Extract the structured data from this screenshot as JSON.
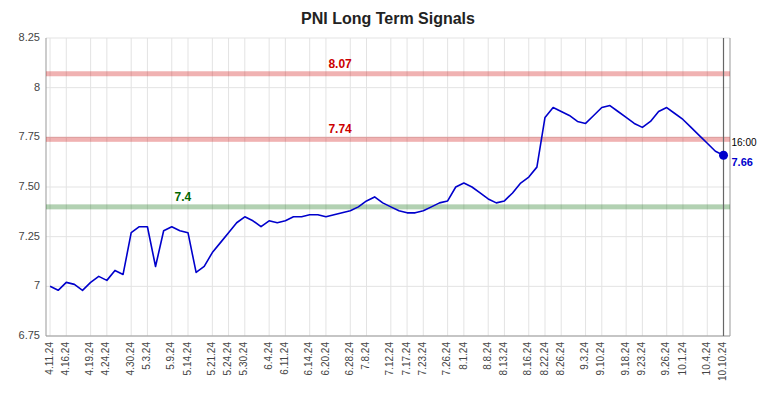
{
  "chart_data": {
    "type": "line",
    "title": "PNI Long Term Signals",
    "categories": [
      "4.11.24",
      null,
      "4.16.24",
      null,
      null,
      "4.19.24",
      null,
      "4.24.24",
      null,
      null,
      "4.30.24",
      null,
      "5.3.24",
      null,
      null,
      "5.9.24",
      null,
      "5.14.24",
      null,
      null,
      "5.21.24",
      null,
      "5.24.24",
      null,
      "5.30.24",
      null,
      null,
      "6.4.24",
      null,
      "6.11.24",
      null,
      null,
      "6.14.24",
      null,
      "6.20.24",
      null,
      null,
      "6.28.24",
      null,
      "7.8.24",
      null,
      null,
      "7.12.24",
      null,
      "7.17.24",
      null,
      "7.23.24",
      null,
      null,
      "7.26.24",
      null,
      "8.1.24",
      null,
      null,
      "8.8.24",
      null,
      "8.13.24",
      null,
      null,
      "8.16.24",
      null,
      "8.22.24",
      null,
      "8.26.24",
      null,
      null,
      "9.3.24",
      null,
      "9.10.24",
      null,
      null,
      "9.18.24",
      null,
      "9.23.24",
      null,
      null,
      "9.26.24",
      null,
      "10.1.24",
      null,
      null,
      "10.4.24",
      null,
      "10.10.24"
    ],
    "values": [
      7.0,
      6.98,
      7.02,
      7.01,
      6.98,
      7.02,
      7.05,
      7.03,
      7.08,
      7.06,
      7.27,
      7.3,
      7.3,
      7.1,
      7.28,
      7.3,
      7.28,
      7.27,
      7.07,
      7.1,
      7.17,
      7.22,
      7.27,
      7.32,
      7.35,
      7.33,
      7.3,
      7.33,
      7.32,
      7.33,
      7.35,
      7.35,
      7.36,
      7.36,
      7.35,
      7.36,
      7.37,
      7.38,
      7.4,
      7.43,
      7.45,
      7.42,
      7.4,
      7.38,
      7.37,
      7.37,
      7.38,
      7.4,
      7.42,
      7.43,
      7.5,
      7.52,
      7.5,
      7.47,
      7.44,
      7.42,
      7.43,
      7.47,
      7.52,
      7.55,
      7.6,
      7.85,
      7.9,
      7.88,
      7.86,
      7.83,
      7.82,
      7.86,
      7.9,
      7.91,
      7.88,
      7.85,
      7.82,
      7.8,
      7.83,
      7.88,
      7.9,
      7.87,
      7.84,
      7.8,
      7.76,
      7.72,
      7.68,
      7.66
    ],
    "color": "#0000cc",
    "ylim": [
      6.75,
      8.25
    ],
    "yticks": [
      6.75,
      7,
      7.25,
      {
        "value": 7.5,
        "label": "7.50"
      },
      7.75,
      8,
      8.25
    ],
    "grid": true,
    "hlines": [
      {
        "value": 8.07,
        "label": "8.07",
        "color": "#cc0000"
      },
      {
        "value": 7.74,
        "label": "7.74",
        "color": "#cc0000"
      },
      {
        "value": 7.4,
        "label": "7.4",
        "color": "#006600"
      }
    ],
    "end_point": {
      "value": 7.66,
      "label": "16:00"
    }
  }
}
